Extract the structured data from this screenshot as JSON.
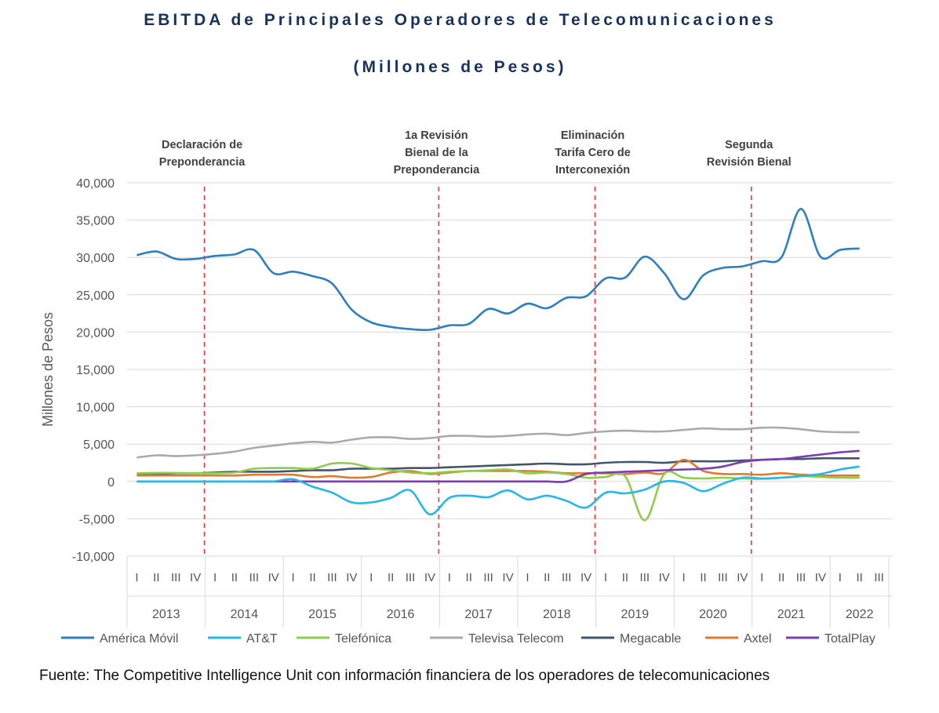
{
  "title": "EBITDA de Principales Operadores de Telecomunicaciones",
  "subtitle": "(Millones de Pesos)",
  "source": "Fuente: The Competitive Intelligence Unit con información financiera de los operadores de telecomunicaciones",
  "chart_data": {
    "type": "line",
    "ylabel": "Millones de Pesos",
    "ylim": [
      -10000,
      40000
    ],
    "yticks": [
      -10000,
      -5000,
      0,
      5000,
      10000,
      15000,
      20000,
      25000,
      30000,
      35000,
      40000
    ],
    "ytick_labels": [
      "-10,000",
      "-5,000",
      "0",
      "5,000",
      "10,000",
      "15,000",
      "20,000",
      "25,000",
      "30,000",
      "35,000",
      "40,000"
    ],
    "grid": true,
    "legend": "bottom",
    "years": [
      {
        "label": "2013",
        "quarters": [
          "I",
          "II",
          "III",
          "IV"
        ]
      },
      {
        "label": "2014",
        "quarters": [
          "I",
          "II",
          "III",
          "IV"
        ]
      },
      {
        "label": "2015",
        "quarters": [
          "I",
          "II",
          "III",
          "IV"
        ]
      },
      {
        "label": "2016",
        "quarters": [
          "I",
          "II",
          "III",
          "IV"
        ]
      },
      {
        "label": "2017",
        "quarters": [
          "I",
          "II",
          "III",
          "IV"
        ]
      },
      {
        "label": "2018",
        "quarters": [
          "I",
          "II",
          "III",
          "IV"
        ]
      },
      {
        "label": "2019",
        "quarters": [
          "I",
          "II",
          "III",
          "IV"
        ]
      },
      {
        "label": "2020",
        "quarters": [
          "I",
          "II",
          "III",
          "IV"
        ]
      },
      {
        "label": "2021",
        "quarters": [
          "I",
          "II",
          "III",
          "IV"
        ]
      },
      {
        "label": "2022",
        "quarters": [
          "I",
          "II",
          "III"
        ]
      }
    ],
    "events": [
      {
        "after_index": 3,
        "label": [
          "Declaración de",
          "Preponderancia"
        ]
      },
      {
        "after_index": 15,
        "label": [
          "1a Revisión",
          "Bienal de la",
          "Preponderancia"
        ]
      },
      {
        "after_index": 23,
        "label": [
          "Eliminación",
          "Tarifa Cero de",
          "Interconexión"
        ]
      },
      {
        "after_index": 31,
        "label": [
          "Segunda",
          "Revisión Bienal"
        ]
      }
    ],
    "series": [
      {
        "name": "América Móvil",
        "color": "#2e7ec2",
        "values": [
          30300,
          30800,
          29800,
          29800,
          30200,
          30400,
          31000,
          27900,
          28100,
          27500,
          26500,
          23000,
          21300,
          20700,
          20400,
          20300,
          20900,
          21100,
          23100,
          22500,
          23800,
          23200,
          24600,
          24800,
          27200,
          27300,
          30100,
          27900,
          24400,
          27600,
          28600,
          28800,
          29500,
          30000,
          36500,
          30100,
          31000,
          31200
        ]
      },
      {
        "name": "AT&T",
        "color": "#27b6e8",
        "values": [
          0,
          0,
          0,
          0,
          0,
          0,
          0,
          0,
          300,
          -700,
          -1500,
          -2800,
          -2800,
          -2200,
          -1200,
          -4400,
          -2200,
          -1900,
          -2100,
          -1200,
          -2400,
          -1900,
          -2600,
          -3500,
          -1500,
          -1600,
          -1100,
          0,
          -200,
          -1300,
          -300,
          500,
          400,
          500,
          700,
          1000,
          1600,
          2000
        ]
      },
      {
        "name": "Telefónica",
        "color": "#8fcc4b",
        "values": [
          1100,
          1150,
          1150,
          1100,
          1100,
          1200,
          1700,
          1800,
          1800,
          1700,
          2400,
          2400,
          1800,
          1500,
          1200,
          1100,
          1300,
          1400,
          1500,
          1600,
          1100,
          1200,
          1000,
          500,
          600,
          700,
          -5200,
          1000,
          500,
          400,
          500,
          400,
          350,
          500,
          700,
          600,
          500,
          500
        ]
      },
      {
        "name": "Televisa Telecom",
        "color": "#aaaaaa",
        "values": [
          3200,
          3500,
          3400,
          3500,
          3700,
          4000,
          4500,
          4800,
          5100,
          5300,
          5200,
          5600,
          5900,
          5900,
          5700,
          5800,
          6100,
          6100,
          6000,
          6100,
          6300,
          6400,
          6200,
          6500,
          6700,
          6800,
          6700,
          6700,
          6900,
          7100,
          7000,
          7000,
          7200,
          7200,
          7000,
          6700,
          6600,
          6600
        ]
      },
      {
        "name": "Megacable",
        "color": "#44546a",
        "values": [
          1000,
          1000,
          1100,
          1100,
          1200,
          1300,
          1300,
          1300,
          1400,
          1500,
          1500,
          1700,
          1700,
          1700,
          1800,
          1800,
          1900,
          2000,
          2100,
          2200,
          2300,
          2400,
          2300,
          2300,
          2500,
          2600,
          2600,
          2500,
          2700,
          2700,
          2700,
          2800,
          2900,
          3000,
          3000,
          3100,
          3100,
          3100
        ]
      },
      {
        "name": "Axtel",
        "color": "#e07b2c",
        "values": [
          800,
          800,
          800,
          800,
          800,
          800,
          900,
          900,
          900,
          600,
          700,
          500,
          600,
          1200,
          1400,
          1000,
          1200,
          1400,
          1400,
          1400,
          1400,
          1300,
          1100,
          1100,
          1100,
          1000,
          1200,
          1100,
          2900,
          1400,
          1000,
          1000,
          900,
          1100,
          900,
          800,
          800,
          800
        ]
      },
      {
        "name": "TotalPlay",
        "color": "#7a3db8",
        "values": [
          0,
          0,
          0,
          0,
          0,
          0,
          0,
          0,
          0,
          0,
          0,
          0,
          0,
          0,
          0,
          0,
          0,
          0,
          0,
          0,
          0,
          0,
          0,
          1000,
          1200,
          1300,
          1400,
          1500,
          1600,
          1700,
          2000,
          2600,
          2900,
          3000,
          3300,
          3600,
          3900,
          4100
        ]
      }
    ]
  }
}
